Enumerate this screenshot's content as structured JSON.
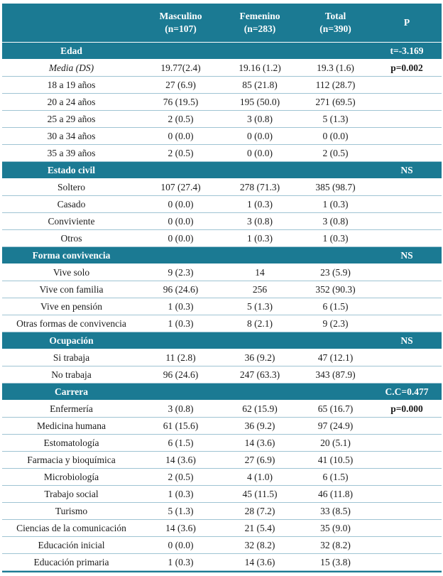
{
  "colors": {
    "header_bg": "#1b7a93",
    "header_text": "#ffffff",
    "row_divider": "#9fc4d3",
    "body_text": "#1b1b1b"
  },
  "table": {
    "columns": [
      {
        "key": "label",
        "line1": "",
        "line2": ""
      },
      {
        "key": "masculino",
        "line1": "Masculino",
        "line2": "(n=107)"
      },
      {
        "key": "femenino",
        "line1": "Femenino",
        "line2": "(n=283)"
      },
      {
        "key": "total",
        "line1": "Total",
        "line2": "(n=390)"
      },
      {
        "key": "p",
        "line1": "P",
        "line2": ""
      }
    ],
    "sections": [
      {
        "title": "Edad",
        "stat": "t=-3.169",
        "rows": [
          {
            "label": "Media (DS)",
            "italic": true,
            "values": [
              "19.77(2.4)",
              "19.16 (1.2)",
              "19.3 (1.6)"
            ],
            "p": "p=0.002",
            "p_bold": true
          },
          {
            "label": "18 a 19 años",
            "values": [
              "27 (6.9)",
              "85 (21.8)",
              "112 (28.7)"
            ],
            "p": ""
          },
          {
            "label": "20 a 24 años",
            "values": [
              "76 (19.5)",
              "195 (50.0)",
              "271 (69.5)"
            ],
            "p": ""
          },
          {
            "label": "25 a 29 años",
            "values": [
              "2 (0.5)",
              "3 (0.8)",
              "5 (1.3)"
            ],
            "p": ""
          },
          {
            "label": "30 a 34 años",
            "values": [
              "0 (0.0)",
              "0 (0.0)",
              "0 (0.0)"
            ],
            "p": ""
          },
          {
            "label": "35 a 39 años",
            "values": [
              "2 (0.5)",
              "0 (0.0)",
              "2 (0.5)"
            ],
            "p": ""
          }
        ]
      },
      {
        "title": "Estado civil",
        "stat": "NS",
        "rows": [
          {
            "label": "Soltero",
            "values": [
              "107 (27.4)",
              "278 (71.3)",
              "385 (98.7)"
            ],
            "p": ""
          },
          {
            "label": "Casado",
            "values": [
              "0 (0.0)",
              "1 (0.3)",
              "1 (0.3)"
            ],
            "p": ""
          },
          {
            "label": "Conviviente",
            "values": [
              "0 (0.0)",
              "3 (0.8)",
              "3 (0.8)"
            ],
            "p": ""
          },
          {
            "label": "Otros",
            "values": [
              "0 (0.0)",
              "1 (0.3)",
              "1 (0.3)"
            ],
            "p": ""
          }
        ]
      },
      {
        "title": "Forma convivencia",
        "stat": "NS",
        "rows": [
          {
            "label": "Vive solo",
            "values": [
              "9 (2.3)",
              "14",
              "23 (5.9)"
            ],
            "p": ""
          },
          {
            "label": "Vive con familia",
            "values": [
              "96 (24.6)",
              "256",
              "352 (90.3)"
            ],
            "p": ""
          },
          {
            "label": "Vive en pensión",
            "values": [
              "1 (0.3)",
              "5 (1.3)",
              "6 (1.5)"
            ],
            "p": ""
          },
          {
            "label": "Otras formas de convivencia",
            "values": [
              "1 (0.3)",
              "8 (2.1)",
              "9 (2.3)"
            ],
            "p": ""
          }
        ]
      },
      {
        "title": "Ocupación",
        "stat": "NS",
        "rows": [
          {
            "label": "Si trabaja",
            "values": [
              "11 (2.8)",
              "36 (9.2)",
              "47 (12.1)"
            ],
            "p": ""
          },
          {
            "label": "No trabaja",
            "values": [
              "96 (24.6)",
              "247 (63.3)",
              "343 (87.9)"
            ],
            "p": ""
          }
        ]
      },
      {
        "title": "Carrera",
        "stat": "C.C=0.477",
        "rows": [
          {
            "label": "Enfermería",
            "values": [
              "3 (0.8)",
              "62 (15.9)",
              "65 (16.7)"
            ],
            "p": "p=0.000",
            "p_bold": true
          },
          {
            "label": "Medicina humana",
            "values": [
              "61 (15.6)",
              "36 (9.2)",
              "97 (24.9)"
            ],
            "p": ""
          },
          {
            "label": "Estomatología",
            "values": [
              "6 (1.5)",
              "14 (3.6)",
              "20 (5.1)"
            ],
            "p": ""
          },
          {
            "label": "Farmacia y bioquímica",
            "values": [
              "14 (3.6)",
              "27 (6.9)",
              "41 (10.5)"
            ],
            "p": ""
          },
          {
            "label": "Microbiología",
            "values": [
              "2 (0.5)",
              "4 (1.0)",
              "6 (1.5)"
            ],
            "p": ""
          },
          {
            "label": "Trabajo social",
            "values": [
              "1 (0.3)",
              "45 (11.5)",
              "46 (11.8)"
            ],
            "p": ""
          },
          {
            "label": "Turismo",
            "values": [
              "5 (1.3)",
              "28 (7.2)",
              "33 (8.5)"
            ],
            "p": ""
          },
          {
            "label": "Ciencias de la comunicación",
            "values": [
              "14 (3.6)",
              "21 (5.4)",
              "35 (9.0)"
            ],
            "p": ""
          },
          {
            "label": "Educación inicial",
            "values": [
              "0 (0.0)",
              "32 (8.2)",
              "32 (8.2)"
            ],
            "p": ""
          },
          {
            "label": "Educación primaria",
            "values": [
              "1 (0.3)",
              "14 (3.6)",
              "15 (3.8)"
            ],
            "p": ""
          }
        ]
      }
    ]
  }
}
